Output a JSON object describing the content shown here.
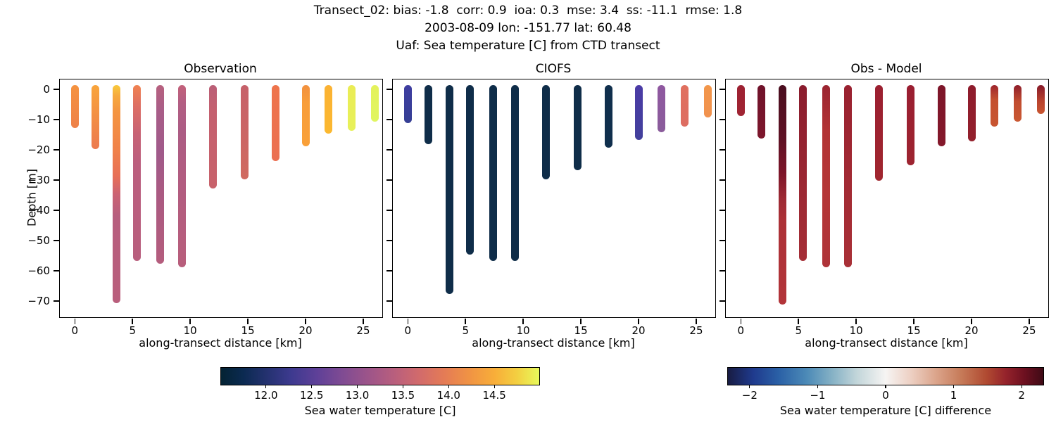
{
  "header": {
    "line1": "Transect_02: bias: -1.8  corr: 0.9  ioa: 0.3  mse: 3.4  ss: -11.1  rmse: 1.8",
    "line2": "2003-08-09 lon: -151.77 lat: 60.48",
    "line3": "Uaf: Sea temperature [C] from CTD transect"
  },
  "axes": {
    "ylabel": "Depth [m]",
    "xlabel": "along-transect distance [km]",
    "xlim": [
      -1.3,
      26.65
    ],
    "ylim_top": 3.2,
    "ylim_bottom": -75.4,
    "xticks": [
      {
        "v": 0,
        "label": "0"
      },
      {
        "v": 5,
        "label": "5"
      },
      {
        "v": 10,
        "label": "10"
      },
      {
        "v": 15,
        "label": "15"
      },
      {
        "v": 20,
        "label": "20"
      },
      {
        "v": 25,
        "label": "25"
      }
    ],
    "yticks": [
      {
        "v": 0,
        "label": "0"
      },
      {
        "v": -10,
        "label": "−10"
      },
      {
        "v": -20,
        "label": "−20"
      },
      {
        "v": -30,
        "label": "−30"
      },
      {
        "v": -40,
        "label": "−40"
      },
      {
        "v": -50,
        "label": "−50"
      },
      {
        "v": -60,
        "label": "−60"
      },
      {
        "v": -70,
        "label": "−70"
      }
    ]
  },
  "chart_data": [
    {
      "type": "bar",
      "title": "Observation",
      "xlabel": "along-transect distance [km]",
      "ylabel": "Depth [m]",
      "value_label": "Sea water temperature [C]",
      "bars": [
        {
          "x": 0.0,
          "depth": 11.5,
          "surface_value_c": 14.2,
          "bottom_value_c": 14.1,
          "stops": [
            [
              0,
              "#f59340"
            ],
            [
              100,
              "#ee8149"
            ]
          ]
        },
        {
          "x": 1.8,
          "depth": 18.5,
          "surface_value_c": 14.35,
          "bottom_value_c": 13.95,
          "stops": [
            [
              0,
              "#f9a53c"
            ],
            [
              60,
              "#f18a47"
            ],
            [
              100,
              "#ec7a4f"
            ]
          ]
        },
        {
          "x": 3.6,
          "depth": 69.5,
          "surface_value_c": 14.75,
          "bottom_value_c": 13.35,
          "stops": [
            [
              0,
              "#f8c93c"
            ],
            [
              5,
              "#f6a93e"
            ],
            [
              12,
              "#f49540"
            ],
            [
              30,
              "#f0814a"
            ],
            [
              42,
              "#e76f57"
            ],
            [
              50,
              "#cb6373"
            ],
            [
              60,
              "#b75e7e"
            ],
            [
              100,
              "#b95e7c"
            ]
          ]
        },
        {
          "x": 5.4,
          "depth": 55.5,
          "surface_value_c": 14.0,
          "bottom_value_c": 13.35,
          "stops": [
            [
              0,
              "#f08251"
            ],
            [
              12,
              "#dd6e64"
            ],
            [
              28,
              "#c76275"
            ],
            [
              45,
              "#bb5e7e"
            ],
            [
              100,
              "#b85e7d"
            ]
          ]
        },
        {
          "x": 7.4,
          "depth": 56.5,
          "surface_value_c": 13.35,
          "bottom_value_c": 13.3,
          "stops": [
            [
              0,
              "#b7617f"
            ],
            [
              15,
              "#a85d88"
            ],
            [
              38,
              "#a05a8a"
            ],
            [
              60,
              "#aa5a82"
            ],
            [
              100,
              "#b45d7d"
            ]
          ]
        },
        {
          "x": 9.3,
          "depth": 57.5,
          "surface_value_c": 13.5,
          "bottom_value_c": 13.35,
          "stops": [
            [
              0,
              "#c3617a"
            ],
            [
              10,
              "#b25e83"
            ],
            [
              25,
              "#ac5c84"
            ],
            [
              50,
              "#b15c80"
            ],
            [
              100,
              "#b85e7c"
            ]
          ]
        },
        {
          "x": 12.0,
          "depth": 31.5,
          "surface_value_c": 13.55,
          "bottom_value_c": 13.55,
          "stops": [
            [
              0,
              "#ba5f77"
            ],
            [
              25,
              "#c4606f"
            ],
            [
              100,
              "#c8626b"
            ]
          ]
        },
        {
          "x": 14.7,
          "depth": 28.5,
          "surface_value_c": 13.6,
          "bottom_value_c": 13.7,
          "stops": [
            [
              0,
              "#c6616a"
            ],
            [
              100,
              "#d06a60"
            ]
          ]
        },
        {
          "x": 17.4,
          "depth": 22.5,
          "surface_value_c": 13.95,
          "bottom_value_c": 13.95,
          "stops": [
            [
              0,
              "#ee744c"
            ],
            [
              100,
              "#eb6f52"
            ]
          ]
        },
        {
          "x": 20.0,
          "depth": 17.5,
          "surface_value_c": 14.3,
          "bottom_value_c": 14.35,
          "stops": [
            [
              0,
              "#f2913f"
            ],
            [
              30,
              "#f89e3a"
            ],
            [
              100,
              "#f9a039"
            ]
          ]
        },
        {
          "x": 22.0,
          "depth": 13.5,
          "surface_value_c": 14.45,
          "bottom_value_c": 14.45,
          "stops": [
            [
              0,
              "#fbb233"
            ],
            [
              100,
              "#fbb830"
            ]
          ]
        },
        {
          "x": 24.0,
          "depth": 12.5,
          "surface_value_c": 14.85,
          "bottom_value_c": 14.9,
          "stops": [
            [
              0,
              "#eaec55"
            ],
            [
              100,
              "#e7f15a"
            ]
          ]
        },
        {
          "x": 26.0,
          "depth": 9.5,
          "surface_value_c": 14.9,
          "bottom_value_c": 14.95,
          "stops": [
            [
              0,
              "#e4f25c"
            ],
            [
              100,
              "#e0f561"
            ]
          ]
        }
      ]
    },
    {
      "type": "bar",
      "title": "CIOFS",
      "xlabel": "along-transect distance [km]",
      "ylabel": "Depth [m]",
      "value_label": "Sea water temperature [C]",
      "bars": [
        {
          "x": 0.0,
          "depth": 10.0,
          "surface_value_c": 12.15,
          "bottom_value_c": 12.1,
          "stops": [
            [
              0,
              "#3e3da0"
            ],
            [
              100,
              "#353f94"
            ]
          ]
        },
        {
          "x": 1.8,
          "depth": 17.0,
          "surface_value_c": 11.7,
          "bottom_value_c": 11.7,
          "stops": [
            [
              0,
              "#0f2d49"
            ],
            [
              100,
              "#0f2d49"
            ]
          ]
        },
        {
          "x": 3.6,
          "depth": 66.5,
          "surface_value_c": 11.7,
          "bottom_value_c": 11.65,
          "stops": [
            [
              0,
              "#0f2d49"
            ],
            [
              100,
              "#0f2d49"
            ]
          ]
        },
        {
          "x": 5.4,
          "depth": 53.5,
          "surface_value_c": 11.7,
          "bottom_value_c": 11.65,
          "stops": [
            [
              0,
              "#0f2d49"
            ],
            [
              100,
              "#0f2d49"
            ]
          ]
        },
        {
          "x": 7.4,
          "depth": 55.5,
          "surface_value_c": 11.7,
          "bottom_value_c": 11.65,
          "stops": [
            [
              0,
              "#0f2d49"
            ],
            [
              100,
              "#0f2d49"
            ]
          ]
        },
        {
          "x": 9.3,
          "depth": 55.5,
          "surface_value_c": 11.7,
          "bottom_value_c": 11.65,
          "stops": [
            [
              0,
              "#0f2d49"
            ],
            [
              100,
              "#0f2d49"
            ]
          ]
        },
        {
          "x": 12.0,
          "depth": 28.5,
          "surface_value_c": 11.7,
          "bottom_value_c": 11.7,
          "stops": [
            [
              0,
              "#0f2d49"
            ],
            [
              100,
              "#0f2d49"
            ]
          ]
        },
        {
          "x": 14.7,
          "depth": 25.5,
          "surface_value_c": 11.7,
          "bottom_value_c": 11.7,
          "stops": [
            [
              0,
              "#0f2d49"
            ],
            [
              100,
              "#0f2d49"
            ]
          ]
        },
        {
          "x": 17.4,
          "depth": 18.0,
          "surface_value_c": 11.75,
          "bottom_value_c": 11.75,
          "stops": [
            [
              0,
              "#102f4d"
            ],
            [
              100,
              "#102f4d"
            ]
          ]
        },
        {
          "x": 20.0,
          "depth": 15.5,
          "surface_value_c": 12.25,
          "bottom_value_c": 12.2,
          "stops": [
            [
              0,
              "#4b3ba6"
            ],
            [
              100,
              "#42409c"
            ]
          ]
        },
        {
          "x": 22.0,
          "depth": 13.0,
          "surface_value_c": 13.0,
          "bottom_value_c": 12.95,
          "stops": [
            [
              0,
              "#8f58a0"
            ],
            [
              100,
              "#8a5c9b"
            ]
          ]
        },
        {
          "x": 24.0,
          "depth": 11.0,
          "surface_value_c": 13.85,
          "bottom_value_c": 13.8,
          "stops": [
            [
              0,
              "#e0705f"
            ],
            [
              100,
              "#dd6d62"
            ]
          ]
        },
        {
          "x": 26.0,
          "depth": 8.0,
          "surface_value_c": 14.25,
          "bottom_value_c": 14.2,
          "stops": [
            [
              0,
              "#f2964a"
            ],
            [
              100,
              "#f1924f"
            ]
          ]
        }
      ]
    },
    {
      "type": "bar",
      "title": "Obs - Model",
      "xlabel": "along-transect distance [km]",
      "ylabel": "Depth [m]",
      "value_label": "Sea water temperature [C] difference",
      "bars": [
        {
          "x": 0.0,
          "depth": 7.5,
          "surface_value_c": 1.8,
          "bottom_value_c": 1.75,
          "stops": [
            [
              0,
              "#9d2132"
            ],
            [
              100,
              "#a02433"
            ]
          ]
        },
        {
          "x": 1.8,
          "depth": 15.0,
          "surface_value_c": 2.1,
          "bottom_value_c": 2.0,
          "stops": [
            [
              0,
              "#6f122a"
            ],
            [
              100,
              "#7d172c"
            ]
          ]
        },
        {
          "x": 3.6,
          "depth": 70.0,
          "surface_value_c": 2.25,
          "bottom_value_c": 1.55,
          "stops": [
            [
              0,
              "#4a0e1f"
            ],
            [
              25,
              "#5f1124"
            ],
            [
              40,
              "#7c1529"
            ],
            [
              52,
              "#9d2a34"
            ],
            [
              62,
              "#ac3137"
            ],
            [
              100,
              "#b23439"
            ]
          ]
        },
        {
          "x": 5.4,
          "depth": 55.5,
          "surface_value_c": 1.95,
          "bottom_value_c": 1.65,
          "stops": [
            [
              0,
              "#8a1c2d"
            ],
            [
              60,
              "#9c2833"
            ],
            [
              100,
              "#a52e36"
            ]
          ]
        },
        {
          "x": 7.4,
          "depth": 57.5,
          "surface_value_c": 1.8,
          "bottom_value_c": 1.5,
          "stops": [
            [
              0,
              "#9b2431"
            ],
            [
              25,
              "#b23334"
            ],
            [
              60,
              "#b53637"
            ],
            [
              100,
              "#ae3338"
            ]
          ]
        },
        {
          "x": 9.3,
          "depth": 57.5,
          "surface_value_c": 1.85,
          "bottom_value_c": 1.6,
          "stops": [
            [
              0,
              "#992130"
            ],
            [
              60,
              "#a32b34"
            ],
            [
              100,
              "#a93037"
            ]
          ]
        },
        {
          "x": 12.0,
          "depth": 29.0,
          "surface_value_c": 1.8,
          "bottom_value_c": 1.75,
          "stops": [
            [
              0,
              "#9b1f30"
            ],
            [
              100,
              "#a0262f"
            ]
          ]
        },
        {
          "x": 14.7,
          "depth": 24.0,
          "surface_value_c": 1.85,
          "bottom_value_c": 1.8,
          "stops": [
            [
              0,
              "#9a1e31"
            ],
            [
              100,
              "#9d2430"
            ]
          ]
        },
        {
          "x": 17.4,
          "depth": 17.5,
          "surface_value_c": 2.05,
          "bottom_value_c": 2.0,
          "stops": [
            [
              0,
              "#7d1529"
            ],
            [
              100,
              "#84182b"
            ]
          ]
        },
        {
          "x": 20.0,
          "depth": 16.0,
          "surface_value_c": 1.95,
          "bottom_value_c": 1.9,
          "stops": [
            [
              0,
              "#8e1b2c"
            ],
            [
              100,
              "#93202c"
            ]
          ]
        },
        {
          "x": 22.0,
          "depth": 11.0,
          "surface_value_c": 1.9,
          "bottom_value_c": 1.25,
          "stops": [
            [
              0,
              "#9e262e"
            ],
            [
              35,
              "#c4502f"
            ],
            [
              100,
              "#c85530"
            ]
          ]
        },
        {
          "x": 24.0,
          "depth": 9.5,
          "surface_value_c": 2.0,
          "bottom_value_c": 1.2,
          "stops": [
            [
              0,
              "#8f1e2b"
            ],
            [
              45,
              "#c14d30"
            ],
            [
              100,
              "#ca5833"
            ]
          ]
        },
        {
          "x": 26.0,
          "depth": 7.0,
          "surface_value_c": 2.1,
          "bottom_value_c": 1.25,
          "stops": [
            [
              0,
              "#871a2a"
            ],
            [
              55,
              "#b8432e"
            ],
            [
              100,
              "#c95631"
            ]
          ]
        }
      ]
    }
  ],
  "colorbars": [
    {
      "label": "Sea water temperature [C]",
      "vmin": 11.5,
      "vmax": 15.0,
      "ticks": [
        {
          "v": 12.0,
          "label": "12.0"
        },
        {
          "v": 12.5,
          "label": "12.5"
        },
        {
          "v": 13.0,
          "label": "13.0"
        },
        {
          "v": 13.5,
          "label": "13.5"
        },
        {
          "v": 14.0,
          "label": "14.0"
        },
        {
          "v": 14.5,
          "label": "14.5"
        }
      ],
      "gradient": [
        [
          0,
          "#042333"
        ],
        [
          7,
          "#0b2a51"
        ],
        [
          14,
          "#23316e"
        ],
        [
          22,
          "#3d3a8f"
        ],
        [
          30,
          "#5e4098"
        ],
        [
          38,
          "#7f4b93"
        ],
        [
          46,
          "#9c548a"
        ],
        [
          54,
          "#b75e7e"
        ],
        [
          62,
          "#d16a6c"
        ],
        [
          70,
          "#e47b56"
        ],
        [
          78,
          "#f09344"
        ],
        [
          86,
          "#f8ae39"
        ],
        [
          93,
          "#f3cf41"
        ],
        [
          100,
          "#e8fa5b"
        ]
      ]
    },
    {
      "label": "Sea water temperature [C] difference",
      "vmin": -2.33,
      "vmax": 2.33,
      "ticks": [
        {
          "v": -2,
          "label": "−2"
        },
        {
          "v": -1,
          "label": "−1"
        },
        {
          "v": 0,
          "label": "0"
        },
        {
          "v": 1,
          "label": "1"
        },
        {
          "v": 2,
          "label": "2"
        }
      ],
      "gradient": [
        [
          0,
          "#181c43"
        ],
        [
          8,
          "#1f3a8d"
        ],
        [
          16,
          "#2a60a6"
        ],
        [
          25,
          "#4c8ab7"
        ],
        [
          33,
          "#85b1c5"
        ],
        [
          41,
          "#c3d6da"
        ],
        [
          50,
          "#f6f4f3"
        ],
        [
          58,
          "#edd0c3"
        ],
        [
          66,
          "#dba48b"
        ],
        [
          74,
          "#c67a58"
        ],
        [
          82,
          "#b04a31"
        ],
        [
          88,
          "#95232b"
        ],
        [
          94,
          "#6d1020"
        ],
        [
          100,
          "#3e0a15"
        ]
      ]
    }
  ]
}
